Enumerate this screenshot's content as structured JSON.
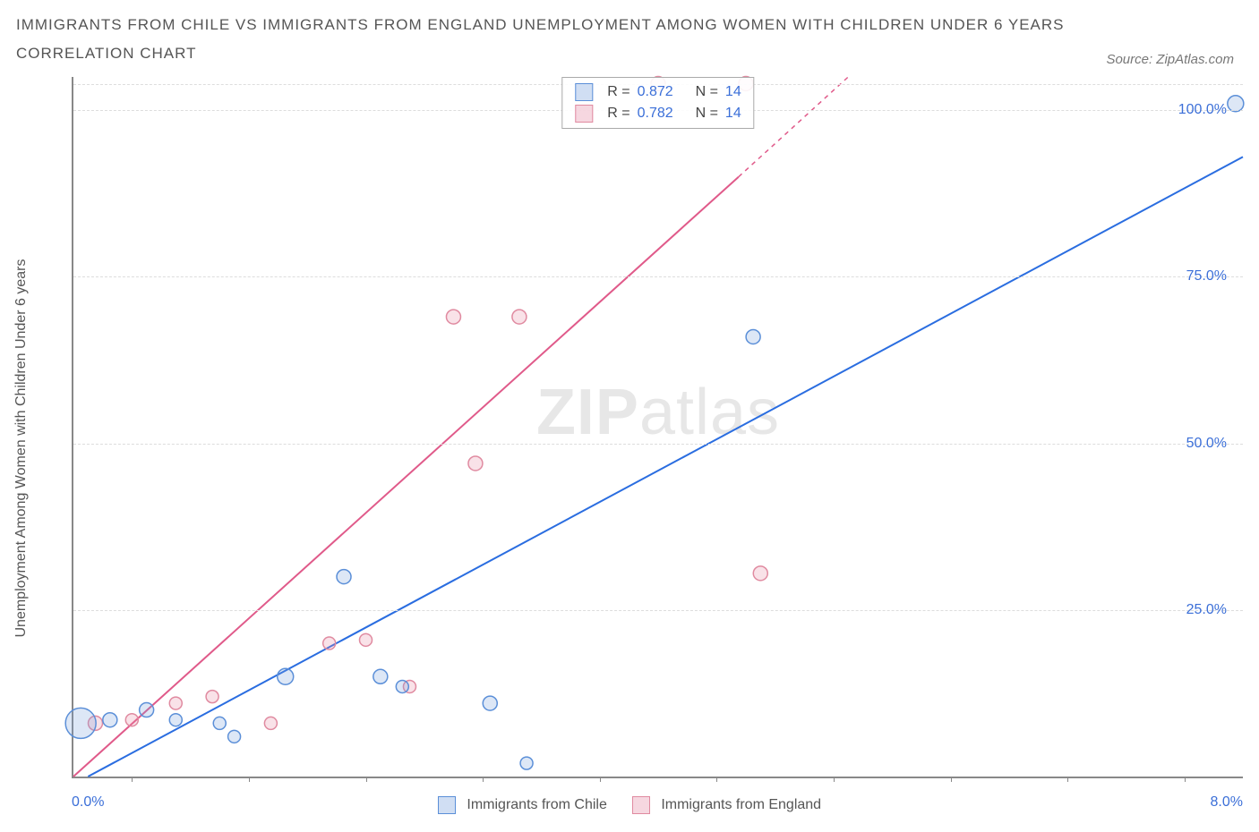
{
  "title_line1": "IMMIGRANTS FROM CHILE VS IMMIGRANTS FROM ENGLAND UNEMPLOYMENT AMONG WOMEN WITH CHILDREN UNDER 6 YEARS",
  "title_line2": "CORRELATION CHART",
  "source_label": "Source: ZipAtlas.com",
  "y_axis_label": "Unemployment Among Women with Children Under 6 years",
  "watermark_bold": "ZIP",
  "watermark_light": "atlas",
  "legend": {
    "series1": "Immigrants from Chile",
    "series2": "Immigrants from England"
  },
  "stats": {
    "r_label": "R =",
    "n_label": "N =",
    "series1": {
      "r": "0.872",
      "n": "14"
    },
    "series2": {
      "r": "0.782",
      "n": "14"
    }
  },
  "chart": {
    "type": "scatter",
    "xlim": [
      0,
      8
    ],
    "ylim": [
      0,
      105
    ],
    "x_tick_positions": [
      0.4,
      1.2,
      2.0,
      2.8,
      3.6,
      4.4,
      5.2,
      6.0,
      6.8,
      7.6
    ],
    "y_grid": [
      25,
      50,
      75,
      100
    ],
    "y_tick_labels": [
      "25.0%",
      "50.0%",
      "75.0%",
      "100.0%"
    ],
    "x_left_label": "0.0%",
    "x_right_label": "8.0%",
    "background_color": "#ffffff",
    "grid_color": "#dddddd",
    "axis_color": "#888888",
    "tick_label_color": "#3b6fd8",
    "series": {
      "chile": {
        "marker_stroke": "#5b8fd8",
        "marker_fill": "rgba(120,160,220,0.25)",
        "line_color": "#2a6de0",
        "line_width": 2,
        "trend": {
          "x1": 0.1,
          "y1": 0,
          "x2": 8.0,
          "y2": 93
        },
        "points": [
          {
            "x": 0.05,
            "y": 8,
            "r": 17
          },
          {
            "x": 0.25,
            "y": 8.5,
            "r": 8
          },
          {
            "x": 0.5,
            "y": 10,
            "r": 8
          },
          {
            "x": 0.7,
            "y": 8.5,
            "r": 7
          },
          {
            "x": 1.0,
            "y": 8,
            "r": 7
          },
          {
            "x": 1.1,
            "y": 6,
            "r": 7
          },
          {
            "x": 1.45,
            "y": 15,
            "r": 9
          },
          {
            "x": 2.1,
            "y": 15,
            "r": 8
          },
          {
            "x": 2.25,
            "y": 13.5,
            "r": 7
          },
          {
            "x": 2.85,
            "y": 11,
            "r": 8
          },
          {
            "x": 3.1,
            "y": 2,
            "r": 7
          },
          {
            "x": 1.85,
            "y": 30,
            "r": 8
          },
          {
            "x": 4.65,
            "y": 66,
            "r": 8
          },
          {
            "x": 7.95,
            "y": 101,
            "r": 9
          }
        ]
      },
      "england": {
        "marker_stroke": "#e08aa0",
        "marker_fill": "rgba(230,140,165,0.25)",
        "line_color": "#e05a8a",
        "line_width": 2,
        "trend_solid": {
          "x1": 0.0,
          "y1": 0,
          "x2": 4.55,
          "y2": 90
        },
        "trend_dashed": {
          "x1": 4.55,
          "y1": 90,
          "x2": 5.3,
          "y2": 105
        },
        "points": [
          {
            "x": 0.15,
            "y": 8,
            "r": 8
          },
          {
            "x": 0.4,
            "y": 8.5,
            "r": 7
          },
          {
            "x": 0.7,
            "y": 11,
            "r": 7
          },
          {
            "x": 0.95,
            "y": 12,
            "r": 7
          },
          {
            "x": 1.35,
            "y": 8,
            "r": 7
          },
          {
            "x": 1.75,
            "y": 20,
            "r": 7
          },
          {
            "x": 2.0,
            "y": 20.5,
            "r": 7
          },
          {
            "x": 2.3,
            "y": 13.5,
            "r": 7
          },
          {
            "x": 2.6,
            "y": 69,
            "r": 8
          },
          {
            "x": 2.75,
            "y": 47,
            "r": 8
          },
          {
            "x": 3.05,
            "y": 69,
            "r": 8
          },
          {
            "x": 4.0,
            "y": 104,
            "r": 8
          },
          {
            "x": 4.6,
            "y": 104,
            "r": 8
          },
          {
            "x": 4.7,
            "y": 30.5,
            "r": 8
          }
        ]
      }
    }
  }
}
